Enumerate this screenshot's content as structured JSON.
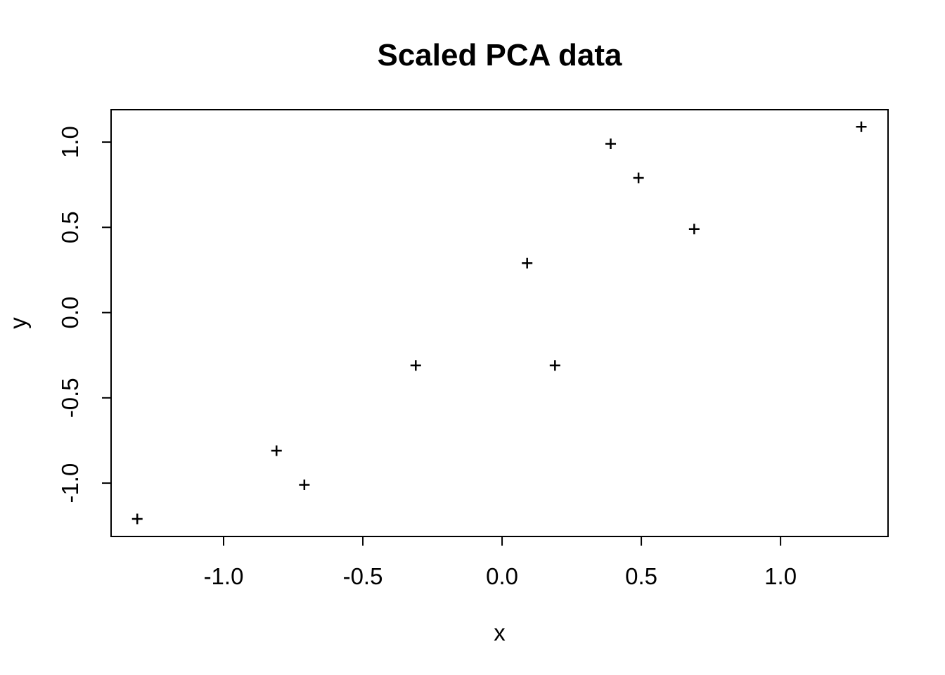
{
  "figure": {
    "background": "#ffffff",
    "foreground": "#000000"
  },
  "chart_data": {
    "type": "scatter",
    "title": "Scaled PCA data",
    "xlabel": "x",
    "ylabel": "y",
    "series": [
      {
        "name": "scaled-pca-points",
        "marker": "plus",
        "color": "#000000",
        "x": [
          0.69,
          -1.31,
          0.39,
          0.09,
          1.29,
          0.49,
          0.19,
          -0.81,
          -0.31,
          -0.71
        ],
        "y": [
          0.49,
          -1.21,
          0.99,
          0.29,
          1.09,
          0.79,
          -0.31,
          -0.81,
          -0.31,
          -1.01
        ]
      }
    ],
    "xlim": [
      -1.404,
      1.386
    ],
    "ylim": [
      -1.313,
      1.19
    ],
    "xticks": {
      "values": [
        -1.0,
        -0.5,
        0.0,
        0.5,
        1.0
      ],
      "labels": [
        "-1.0",
        "-0.5",
        "0.0",
        "0.5",
        "1.0"
      ]
    },
    "yticks": {
      "values": [
        -1.0,
        -0.5,
        0.0,
        0.5,
        1.0
      ],
      "labels": [
        "-1.0",
        "-0.5",
        "0.0",
        "0.5",
        "1.0"
      ]
    },
    "grid": false,
    "legend_position": "none",
    "axis_color": "#000000",
    "background": "#ffffff"
  }
}
